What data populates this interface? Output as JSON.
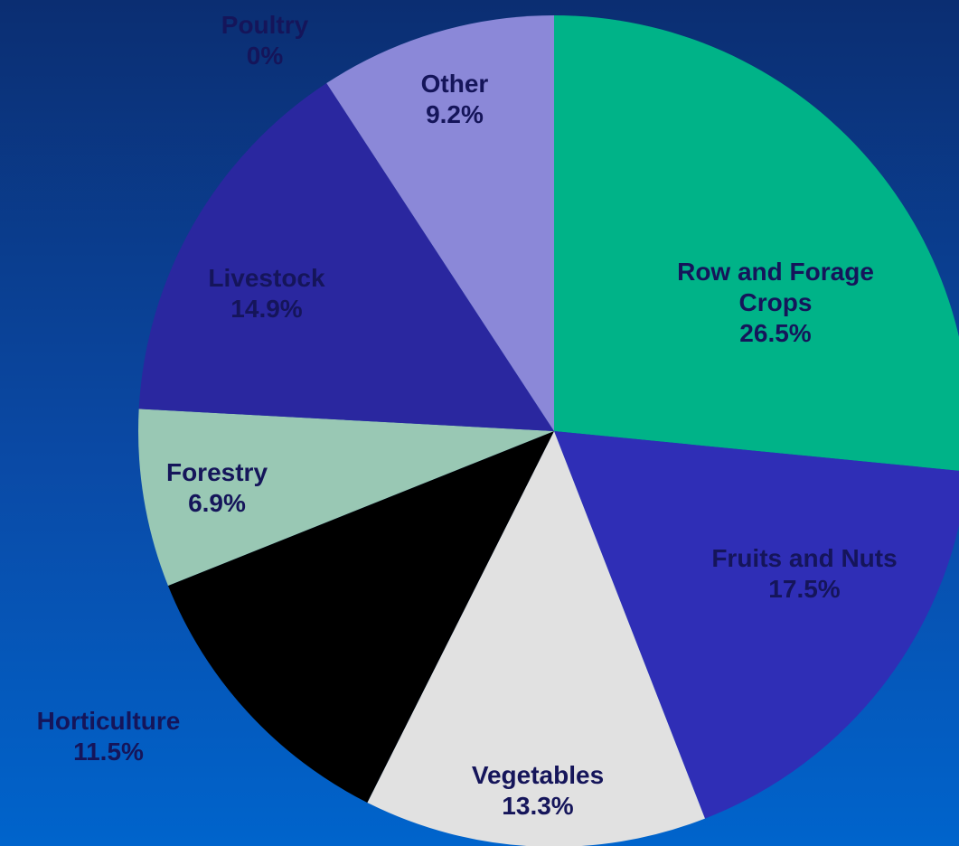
{
  "chart_data": {
    "type": "pie",
    "categories": [
      "Row and Forage Crops",
      "Fruits and Nuts",
      "Vegetables",
      "Horticulture",
      "Forestry",
      "Livestock",
      "Poultry",
      "Other"
    ],
    "values": [
      26.5,
      17.5,
      13.3,
      11.5,
      6.9,
      14.9,
      0,
      9.2
    ],
    "value_labels": [
      "26.5%",
      "17.5%",
      "13.3%",
      "11.5%",
      "6.9%",
      "14.9%",
      "0%",
      "9.2%"
    ],
    "colors": [
      "#00b388",
      "#2f2eb6",
      "#e1e1e1",
      "#000000",
      "#99c8b4",
      "#2a279f",
      "#2a279f",
      "#8b88d8"
    ]
  }
}
